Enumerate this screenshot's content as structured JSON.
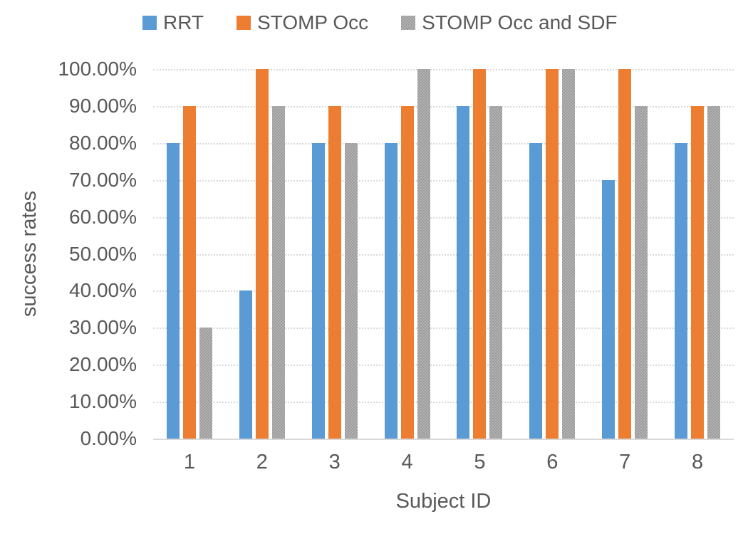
{
  "chart_data": {
    "type": "bar",
    "title": "",
    "categories": [
      "1",
      "2",
      "3",
      "4",
      "5",
      "6",
      "7",
      "8"
    ],
    "series": [
      {
        "name": "RRT",
        "color": "#5B9BD5",
        "textured": false,
        "values": [
          80,
          40,
          80,
          80,
          90,
          80,
          70,
          80
        ]
      },
      {
        "name": "STOMP Occ",
        "color": "#ED7D31",
        "textured": false,
        "values": [
          90,
          100,
          90,
          90,
          100,
          100,
          100,
          90
        ]
      },
      {
        "name": "STOMP Occ and SDF",
        "color": "#A5A5A5",
        "textured": true,
        "values": [
          30,
          90,
          80,
          100,
          90,
          100,
          90,
          90
        ]
      }
    ],
    "xlabel": "Subject ID",
    "ylabel": "success rates",
    "ylim": [
      0,
      100
    ],
    "ytick_step": 10,
    "ytick_labels": [
      "100.00%",
      "90.00%",
      "80.00%",
      "70.00%",
      "60.00%",
      "50.00%",
      "40.00%",
      "30.00%",
      "20.00%",
      "10.00%",
      "0.00%"
    ],
    "legend_position": "top",
    "grid": true,
    "colors": {
      "text": "#595959",
      "gridline": "#D9D9D9",
      "background": "#FFFFFF"
    }
  }
}
